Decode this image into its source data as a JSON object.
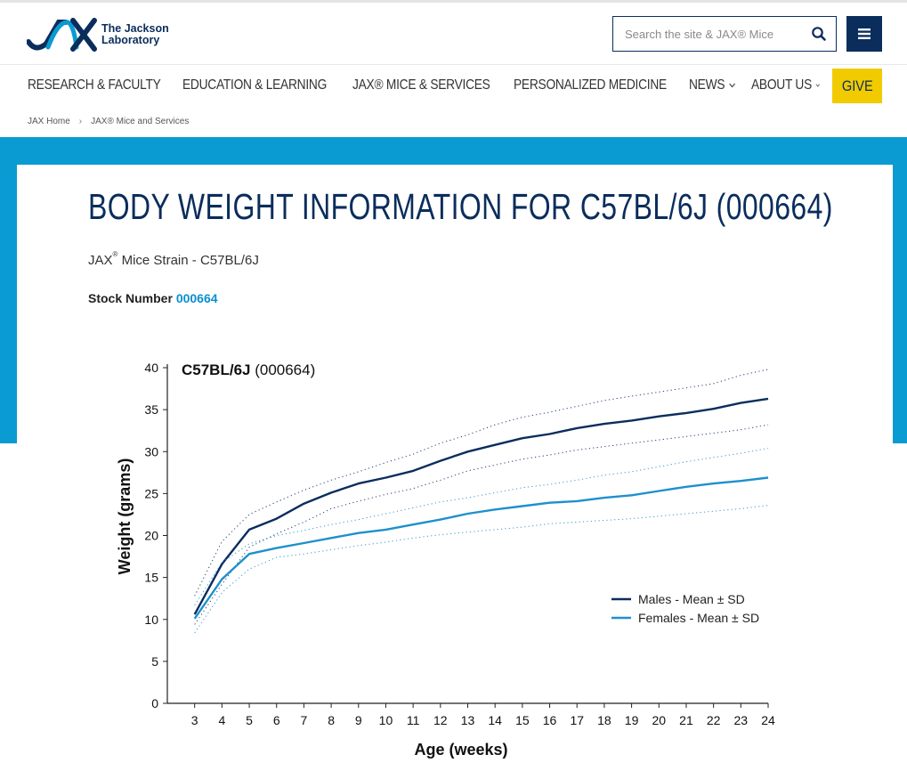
{
  "header": {
    "logo_line1": "The Jackson",
    "logo_line2": "Laboratory",
    "search_placeholder": "Search the site & JAX® Mice"
  },
  "nav": {
    "items": [
      {
        "label": "RESEARCH & FACULTY"
      },
      {
        "label": "EDUCATION & LEARNING"
      },
      {
        "label": "JAX® MICE & SERVICES"
      },
      {
        "label": "PERSONALIZED MEDICINE"
      },
      {
        "label": "NEWS"
      },
      {
        "label": "ABOUT US"
      }
    ],
    "give_label": "GIVE"
  },
  "breadcrumb": [
    "JAX Home",
    "JAX® Mice and Services"
  ],
  "page": {
    "title": "BODY WEIGHT INFORMATION FOR C57BL/6J (000664)",
    "strain_prefix": "JAX",
    "strain_reg": "®",
    "strain_rest": " Mice Strain - C57BL/6J",
    "stock_label": "Stock Number ",
    "stock_number": "000664"
  },
  "colors": {
    "navy": "#0a2d5c",
    "accent_blue": "#0a9bd2",
    "give_yellow": "#f1cb00",
    "male_line": "#0b2d5e",
    "female_line": "#1e90cd"
  },
  "chart_data": {
    "type": "line",
    "title_bold": "C57BL/6J",
    "title_rest": " (000664)",
    "xlabel": "Age (weeks)",
    "ylabel": "Weight (grams)",
    "x": [
      3,
      4,
      5,
      6,
      7,
      8,
      9,
      10,
      11,
      12,
      13,
      14,
      15,
      16,
      17,
      18,
      19,
      20,
      21,
      22,
      23,
      24
    ],
    "xlim": [
      2,
      24
    ],
    "ylim": [
      0,
      40
    ],
    "yticks": [
      0,
      5,
      10,
      15,
      20,
      25,
      30,
      35,
      40
    ],
    "legend_position": "right",
    "series": [
      {
        "name": "Males - Mean ± SD",
        "color": "#0b2d5e",
        "mean": [
          10.6,
          16.6,
          20.7,
          22.0,
          23.8,
          25.1,
          26.2,
          26.9,
          27.7,
          28.9,
          30.0,
          30.8,
          31.6,
          32.1,
          32.8,
          33.3,
          33.7,
          34.2,
          34.6,
          35.1,
          35.8,
          36.3
        ],
        "upper": [
          12.8,
          19.3,
          22.5,
          24.0,
          25.4,
          26.6,
          27.6,
          28.7,
          29.7,
          31.0,
          32.0,
          33.2,
          34.1,
          34.7,
          35.4,
          36.1,
          36.6,
          37.1,
          37.6,
          38.1,
          39.1,
          39.8
        ],
        "lower": [
          9.4,
          14.2,
          18.6,
          20.2,
          21.6,
          23.2,
          24.1,
          24.9,
          25.6,
          26.6,
          27.7,
          28.4,
          29.1,
          29.6,
          30.2,
          30.6,
          31.0,
          31.4,
          31.8,
          32.2,
          32.6,
          33.2
        ]
      },
      {
        "name": "Females - Mean ± SD",
        "color": "#1e90cd",
        "mean": [
          10.1,
          14.8,
          17.8,
          18.5,
          19.1,
          19.7,
          20.3,
          20.7,
          21.3,
          21.9,
          22.6,
          23.1,
          23.5,
          23.9,
          24.1,
          24.5,
          24.8,
          25.3,
          25.8,
          26.2,
          26.5,
          26.9
        ],
        "upper": [
          11.7,
          16.8,
          19.0,
          20.0,
          20.6,
          21.3,
          21.9,
          22.6,
          23.3,
          24.0,
          24.5,
          25.1,
          25.7,
          26.1,
          26.6,
          27.2,
          27.6,
          28.2,
          28.8,
          29.3,
          29.8,
          30.4
        ],
        "lower": [
          8.4,
          13.2,
          16.0,
          17.4,
          17.8,
          18.3,
          18.8,
          19.2,
          19.7,
          20.1,
          20.4,
          20.7,
          21.0,
          21.4,
          21.6,
          21.8,
          22.0,
          22.3,
          22.6,
          22.9,
          23.2,
          23.6
        ]
      }
    ]
  }
}
